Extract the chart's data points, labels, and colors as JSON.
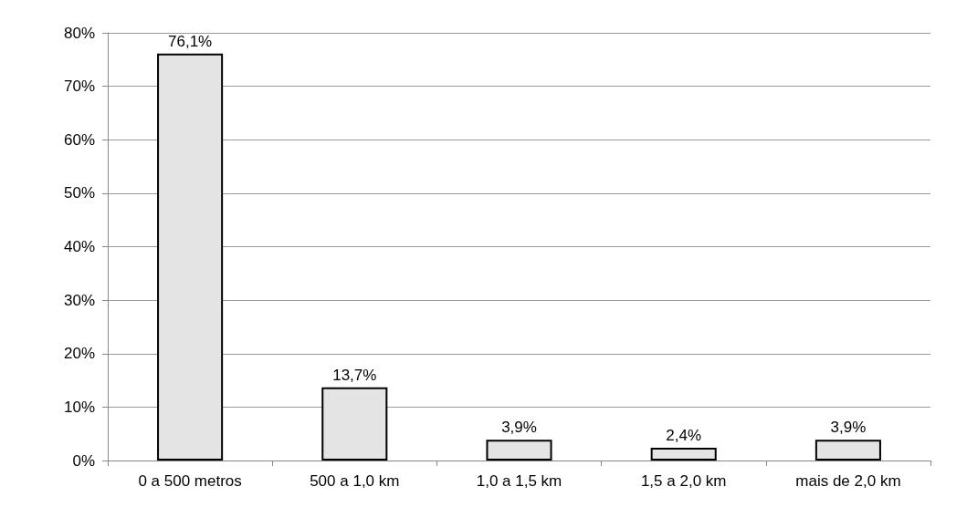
{
  "chart_data": {
    "type": "bar",
    "categories": [
      "0 a 500 metros",
      "500 a 1,0 km",
      "1,0 a 1,5 km",
      "1,5 a 2,0 km",
      "mais de 2,0 km"
    ],
    "values": [
      76.1,
      13.7,
      3.9,
      2.4,
      3.9
    ],
    "value_labels": [
      "76,1%",
      "13,7%",
      "3,9%",
      "2,4%",
      "3,9%"
    ],
    "color": "#e4e4e4",
    "ylim": [
      0,
      80
    ],
    "yticks": [
      {
        "value": 0,
        "label": "0%"
      },
      {
        "value": 10,
        "label": "10%"
      },
      {
        "value": 20,
        "label": "20%"
      },
      {
        "value": 30,
        "label": "30%"
      },
      {
        "value": 40,
        "label": "40%"
      },
      {
        "value": 50,
        "label": "50%"
      },
      {
        "value": 60,
        "label": "60%"
      },
      {
        "value": 70,
        "label": "70%"
      },
      {
        "value": 80,
        "label": "80%"
      }
    ],
    "grid": "y"
  }
}
